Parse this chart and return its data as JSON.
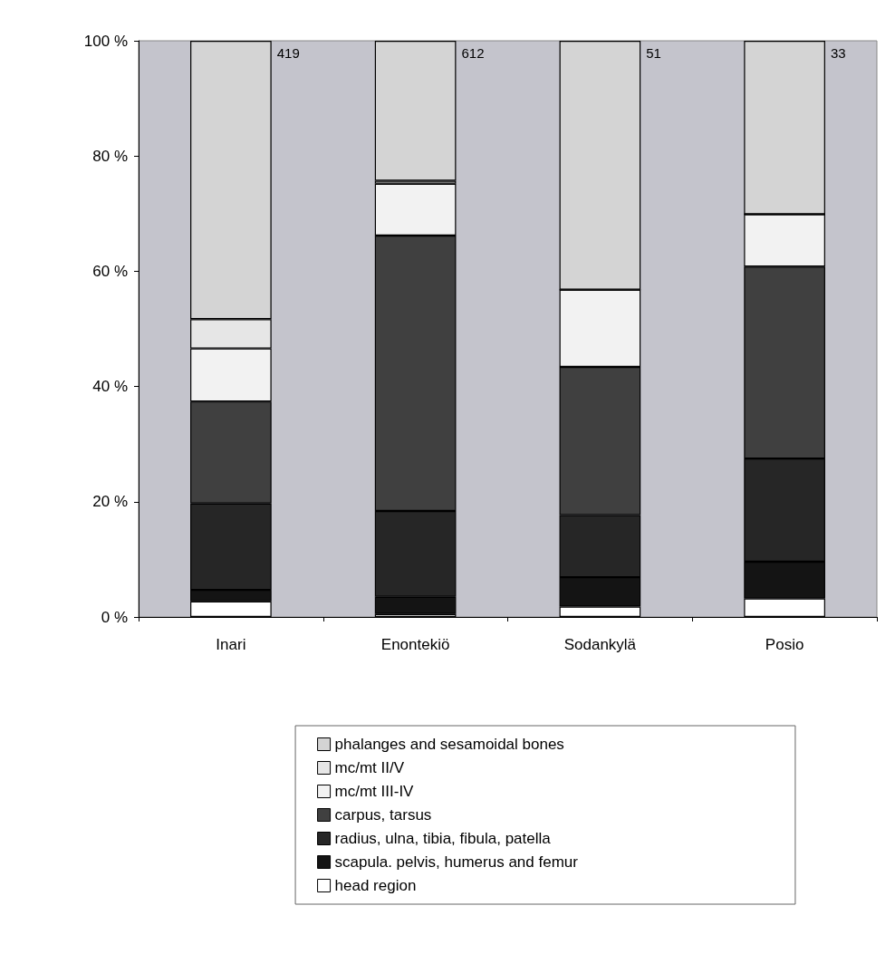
{
  "chart_data": {
    "type": "bar",
    "stacked": true,
    "categories": [
      "Inari",
      "Enontekiö",
      "Sodankylä",
      "Posio"
    ],
    "series": [
      {
        "name": "head region",
        "color": "#ffffff",
        "values": [
          2.7,
          0.5,
          1.8,
          3.2
        ]
      },
      {
        "name": "scapula. pelvis, humerus and femur",
        "color": "#141414",
        "values": [
          2.0,
          3.0,
          5.1,
          6.4
        ]
      },
      {
        "name": "radius, ulna, tibia, fibula, patella",
        "color": "#262626",
        "values": [
          15.0,
          14.9,
          10.8,
          17.9
        ]
      },
      {
        "name": "carpus, tarsus",
        "color": "#404040",
        "values": [
          17.7,
          47.8,
          25.7,
          33.3
        ]
      },
      {
        "name": "mc/mt III-IV",
        "color": "#f2f2f2",
        "values": [
          9.2,
          9.0,
          13.4,
          9.1
        ]
      },
      {
        "name": "mc/mt II/V",
        "color": "#e6e6e6",
        "values": [
          5.1,
          0.5,
          0,
          0
        ]
      },
      {
        "name": "phalanges and sesamoidal bones",
        "color": "#d4d4d4",
        "values": [
          48.3,
          24.3,
          43.2,
          30.1
        ]
      }
    ],
    "ylim": [
      0,
      100
    ],
    "yticks": [
      {
        "value": 0,
        "label": "0 %"
      },
      {
        "value": 20,
        "label": "20 %"
      },
      {
        "value": 40,
        "label": "40 %"
      },
      {
        "value": 60,
        "label": "60 %"
      },
      {
        "value": 80,
        "label": "80 %"
      },
      {
        "value": 100,
        "label": "100 %"
      }
    ],
    "grid": false,
    "legend": "bottom",
    "annotations": [
      "419",
      "612",
      "51",
      "33"
    ]
  }
}
